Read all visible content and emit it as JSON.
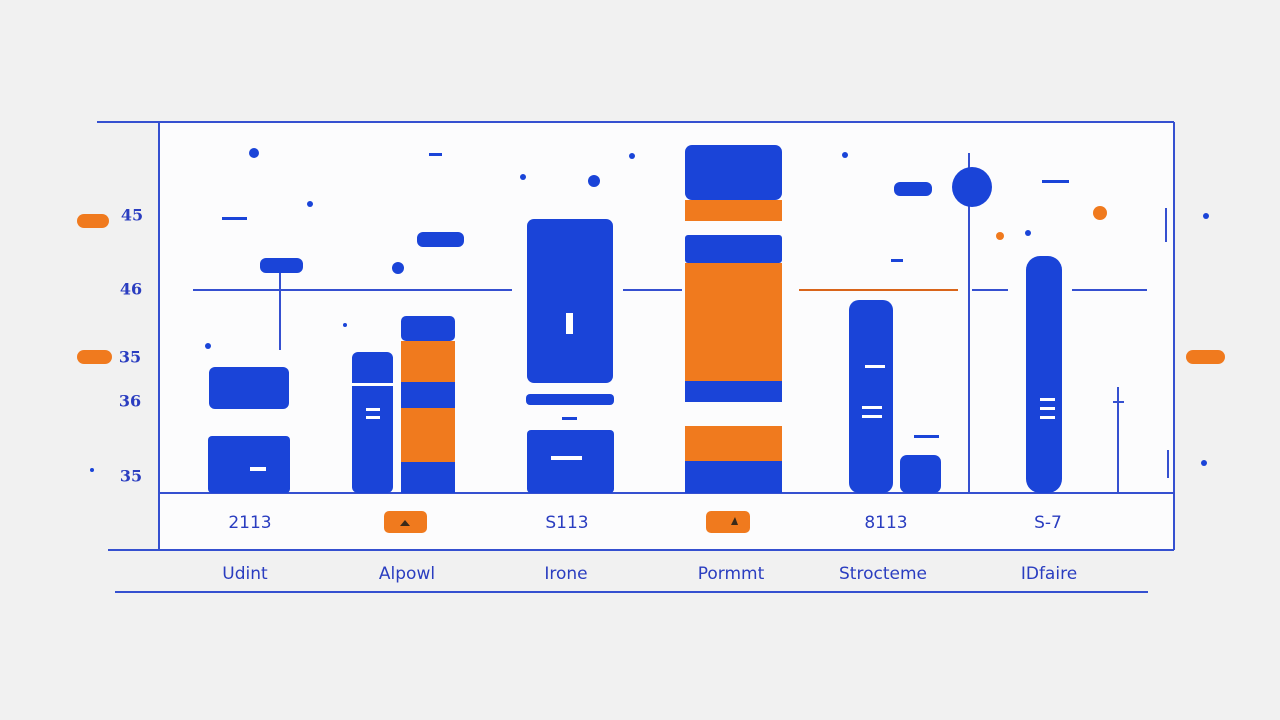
{
  "axis_labels": [
    "45",
    "46",
    "35",
    "36",
    "35"
  ],
  "column_codes": [
    "2113",
    "S113",
    "8113",
    "S-7"
  ],
  "column_names": [
    "Udint",
    "Alpowl",
    "Irone",
    "Pormmt",
    "Strocteme",
    "IDfaire"
  ]
}
